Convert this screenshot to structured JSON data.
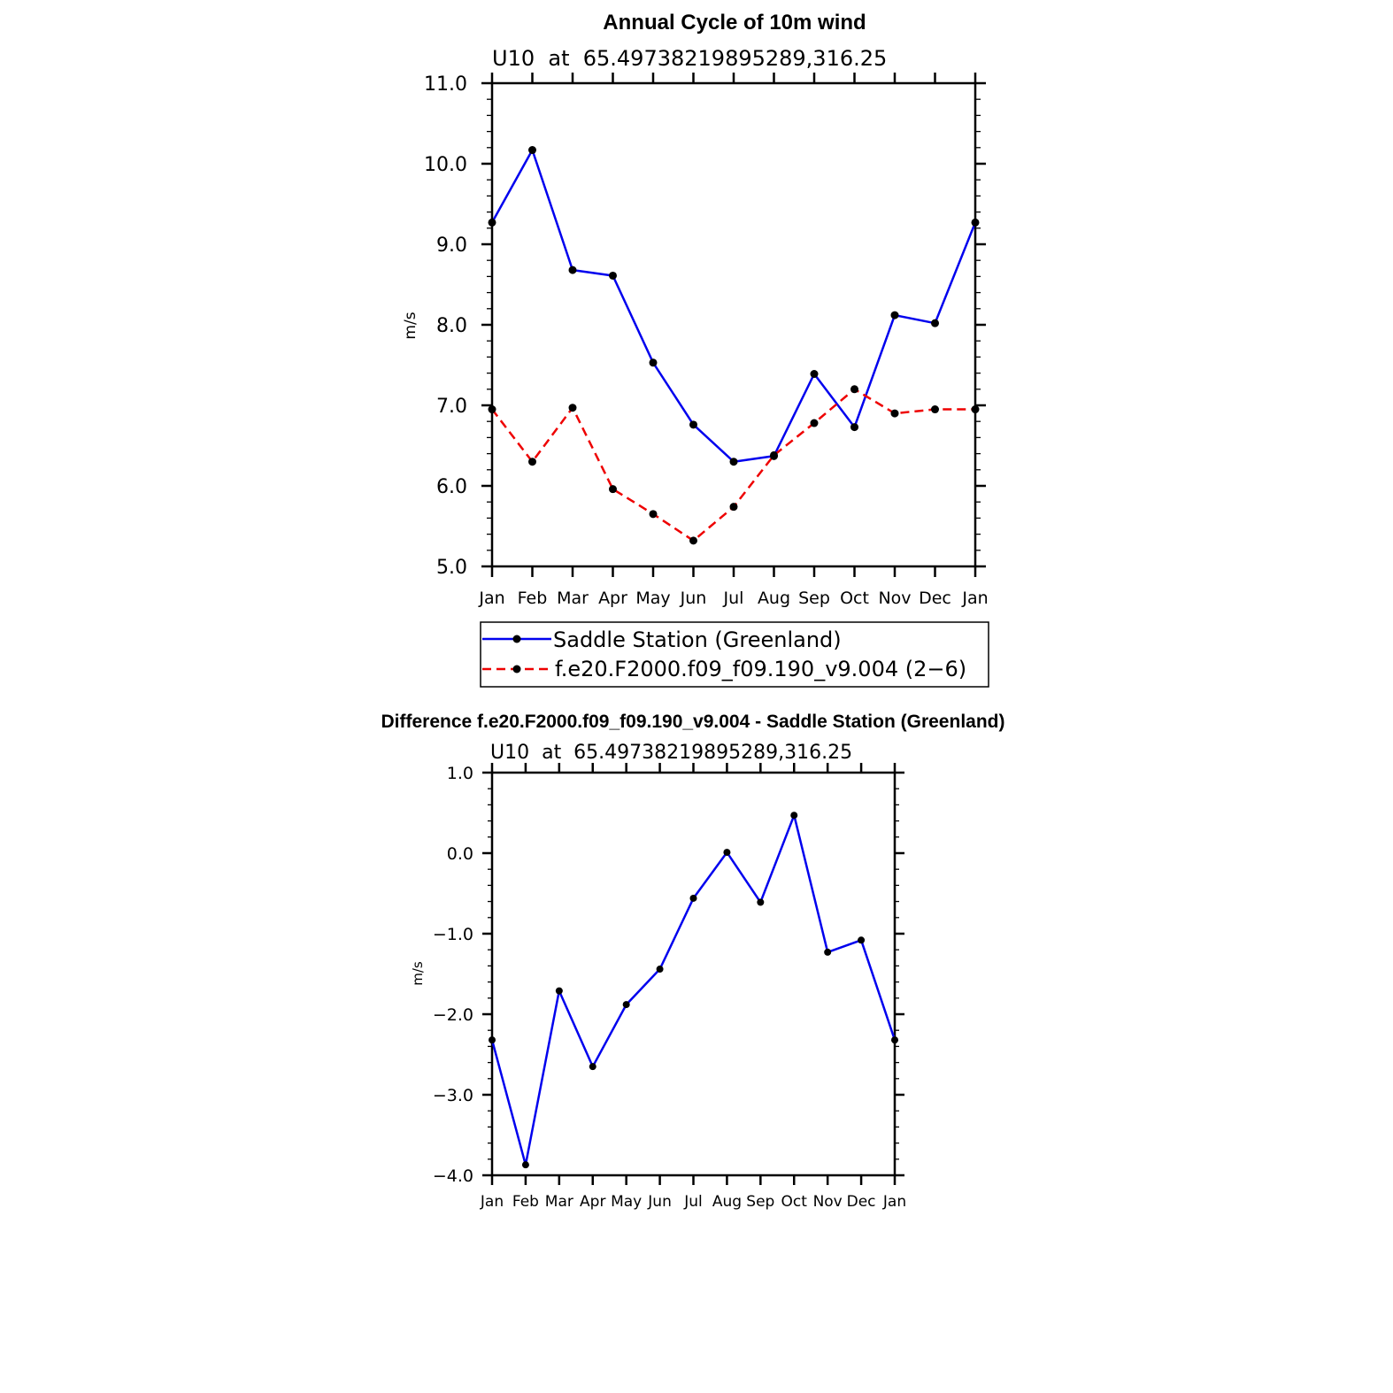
{
  "chart_data": [
    {
      "type": "line",
      "title": "Annual Cycle of 10m wind",
      "subtitle": "U10  at  65.49738219895289,316.25",
      "ylabel": "m/s",
      "categories": [
        "Jan",
        "Feb",
        "Mar",
        "Apr",
        "May",
        "Jun",
        "Jul",
        "Aug",
        "Sep",
        "Oct",
        "Nov",
        "Dec",
        "Jan"
      ],
      "ylim": [
        5.0,
        11.0
      ],
      "yticks": [
        "5.0",
        "6.0",
        "7.0",
        "8.0",
        "9.0",
        "10.0",
        "11.0"
      ],
      "legend_position": "bottom",
      "series": [
        {
          "name": "Saddle Station (Greenland)",
          "color": "#0000ee",
          "dash": "solid",
          "values": [
            9.27,
            10.17,
            8.68,
            8.61,
            7.53,
            6.76,
            6.3,
            6.37,
            7.39,
            6.73,
            8.12,
            8.02,
            9.27
          ]
        },
        {
          "name": "f.e20.F2000.f09_f09.190_v9.004 (2−6)",
          "color": "#ee0000",
          "dash": "dashed",
          "values": [
            6.95,
            6.3,
            6.97,
            5.96,
            5.65,
            5.32,
            5.74,
            6.38,
            6.78,
            7.2,
            6.9,
            6.95,
            6.95
          ]
        }
      ]
    },
    {
      "type": "line",
      "title": "Difference f.e20.F2000.f09_f09.190_v9.004 - Saddle Station (Greenland)",
      "subtitle": "U10  at  65.49738219895289,316.25",
      "ylabel": "m/s",
      "categories": [
        "Jan",
        "Feb",
        "Mar",
        "Apr",
        "May",
        "Jun",
        "Jul",
        "Aug",
        "Sep",
        "Oct",
        "Nov",
        "Dec",
        "Jan"
      ],
      "ylim": [
        -4.0,
        1.0
      ],
      "yticks": [
        "−4.0",
        "−3.0",
        "−2.0",
        "−1.0",
        "0.0",
        "1.0"
      ],
      "series": [
        {
          "color": "#0000ee",
          "dash": "solid",
          "values": [
            -2.32,
            -3.87,
            -1.71,
            -2.65,
            -1.88,
            -1.44,
            -0.56,
            0.01,
            -0.61,
            0.47,
            -1.23,
            -1.08,
            -2.32
          ]
        }
      ]
    }
  ]
}
